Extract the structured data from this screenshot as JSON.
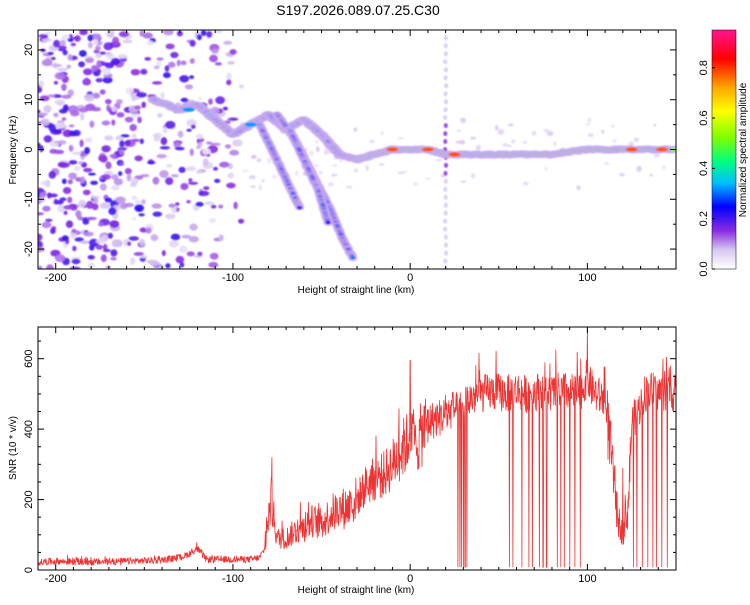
{
  "figure": {
    "title": "S197.2026.089.07.25.C30"
  },
  "chart_data": [
    {
      "type": "heatmap",
      "title": "S197.2026.089.07.25.C30",
      "xlabel": "Height of straight line (km)",
      "ylabel": "Frequency (Hz)",
      "xlim": [
        -210,
        150
      ],
      "ylim": [
        -24,
        24
      ],
      "xticks": [
        -200,
        -100,
        0,
        100
      ],
      "yticks": [
        -20,
        -10,
        0,
        10,
        20
      ],
      "colorbar": {
        "label": "Normalized spectral amplitude",
        "range": [
          0,
          0.95
        ],
        "ticks": [
          0.0,
          0.2,
          0.4,
          0.6,
          0.8
        ],
        "colormap": [
          "#ffffff",
          "#d8c8f0",
          "#8a2be2",
          "#0000ff",
          "#00bfff",
          "#00ff7f",
          "#7fff00",
          "#ffff00",
          "#ffa500",
          "#ff0000",
          "#ff1493"
        ]
      },
      "features": {
        "noise_band_x": [
          -210,
          -95
        ],
        "main_ridge": [
          [
            -145,
            10
          ],
          [
            -130,
            8
          ],
          [
            -120,
            9
          ],
          [
            -100,
            3
          ],
          [
            -90,
            5
          ],
          [
            -80,
            7
          ],
          [
            -70,
            4
          ],
          [
            -60,
            6
          ],
          [
            -50,
            3
          ],
          [
            -40,
            -1
          ],
          [
            -30,
            -2
          ],
          [
            -20,
            -1
          ],
          [
            -10,
            0
          ],
          [
            0,
            0
          ],
          [
            10,
            0
          ],
          [
            20,
            -1
          ],
          [
            25,
            -1
          ],
          [
            50,
            -1
          ],
          [
            80,
            -1
          ],
          [
            100,
            0
          ],
          [
            125,
            0
          ],
          [
            150,
            0
          ]
        ],
        "descending_tracks": [
          [
            [
              -75,
              7
            ],
            [
              -65,
              2
            ],
            [
              -55,
              -5
            ],
            [
              -45,
              -12
            ],
            [
              -38,
              -18
            ],
            [
              -32,
              -22
            ]
          ],
          [
            [
              -68,
              4
            ],
            [
              -60,
              -2
            ],
            [
              -52,
              -8
            ],
            [
              -46,
              -15
            ]
          ],
          [
            [
              -85,
              5
            ],
            [
              -78,
              0
            ],
            [
              -70,
              -6
            ],
            [
              -62,
              -12
            ]
          ]
        ],
        "vertical_line_x": 20,
        "high_amplitude_patches": [
          [
            -125,
            8
          ],
          [
            -90,
            5
          ],
          [
            -10,
            0
          ],
          [
            10,
            0
          ],
          [
            25,
            -1
          ],
          [
            125,
            0
          ],
          [
            142,
            0
          ]
        ]
      }
    },
    {
      "type": "line",
      "xlabel": "Height of straight line (km)",
      "ylabel": "SNR (10 * v/v)",
      "xlim": [
        -210,
        150
      ],
      "ylim": [
        0,
        690
      ],
      "xticks": [
        -200,
        -100,
        0,
        100
      ],
      "yticks": [
        0,
        200,
        400,
        600
      ],
      "color": "#ee3333",
      "x": [
        -210,
        -200,
        -180,
        -160,
        -140,
        -130,
        -125,
        -120,
        -115,
        -110,
        -100,
        -90,
        -85,
        -82,
        -80,
        -78,
        -76,
        -75,
        -70,
        -65,
        -60,
        -55,
        -50,
        -45,
        -40,
        -35,
        -30,
        -25,
        -20,
        -15,
        -10,
        -5,
        -2,
        0,
        2,
        5,
        10,
        15,
        20,
        25,
        27,
        30,
        35,
        40,
        45,
        50,
        55,
        60,
        65,
        70,
        75,
        80,
        85,
        90,
        95,
        98,
        100,
        102,
        105,
        110,
        113,
        117,
        120,
        123,
        125,
        128,
        132,
        135,
        140,
        145,
        150
      ],
      "y": [
        22,
        25,
        22,
        25,
        28,
        35,
        45,
        60,
        30,
        30,
        30,
        30,
        35,
        60,
        150,
        180,
        120,
        90,
        90,
        110,
        120,
        140,
        130,
        160,
        170,
        180,
        200,
        240,
        260,
        270,
        300,
        340,
        360,
        380,
        350,
        370,
        420,
        430,
        440,
        460,
        445,
        470,
        490,
        500,
        505,
        505,
        500,
        510,
        500,
        505,
        510,
        500,
        510,
        505,
        500,
        520,
        550,
        520,
        500,
        480,
        350,
        150,
        100,
        180,
        420,
        440,
        500,
        510,
        505,
        505,
        500
      ],
      "dropouts_x": [
        27,
        28,
        29,
        30,
        31,
        32,
        56,
        58,
        63,
        67,
        69,
        73,
        75,
        77,
        83,
        85,
        87,
        90,
        93,
        96,
        120,
        126,
        128,
        131,
        134,
        137,
        139,
        142,
        145
      ],
      "spikes": [
        [
          -78,
          320
        ],
        [
          0,
          595
        ],
        [
          100,
          690
        ],
        [
          120,
          290
        ]
      ]
    }
  ]
}
